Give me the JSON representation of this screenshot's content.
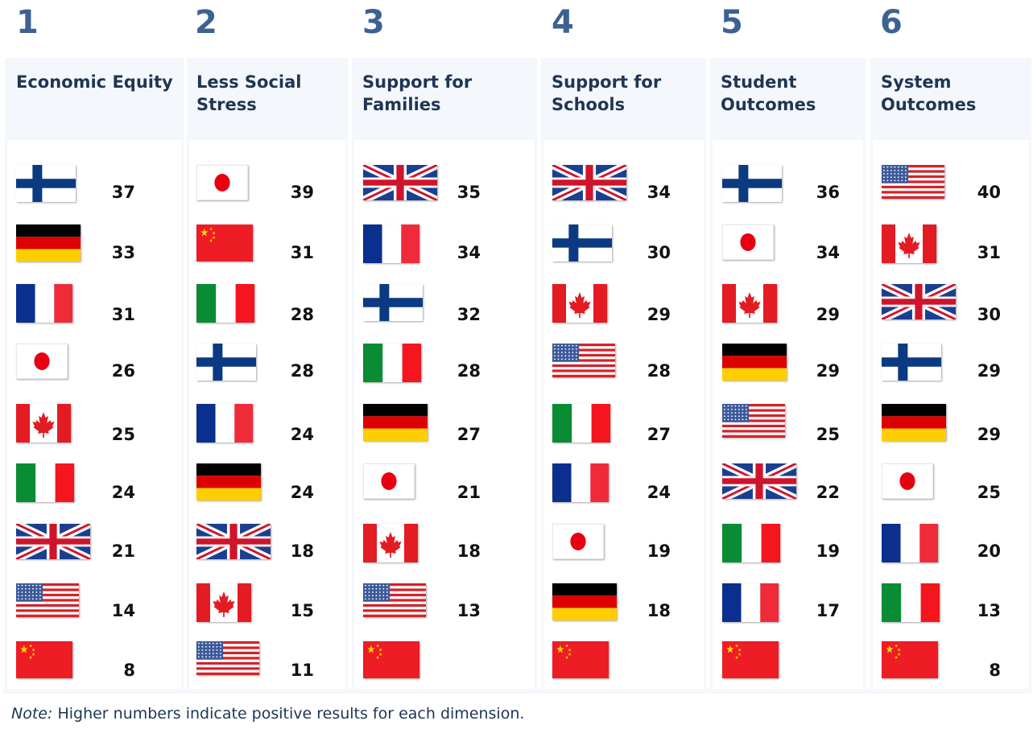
{
  "chart_data": {
    "type": "table",
    "note_label": "Note:",
    "note_text": "Higher numbers indicate positive results for each dimension.",
    "columns": [
      {
        "number": "1",
        "title_line1": "Economic Equity",
        "title_line2": "",
        "rows": [
          {
            "country": "Finland",
            "flag": "finland-flag",
            "score": "37"
          },
          {
            "country": "Germany",
            "flag": "germany-flag",
            "score": "33"
          },
          {
            "country": "France",
            "flag": "france-flag",
            "score": "31"
          },
          {
            "country": "Japan",
            "flag": "japan-flag",
            "score": "26"
          },
          {
            "country": "Canada",
            "flag": "canada-flag",
            "score": "25"
          },
          {
            "country": "Italy",
            "flag": "italy-flag",
            "score": "24"
          },
          {
            "country": "United Kingdom",
            "flag": "uk-flag",
            "score": "21"
          },
          {
            "country": "United States",
            "flag": "usa-flag",
            "score": "14"
          },
          {
            "country": "China",
            "flag": "china-flag",
            "score": "8"
          }
        ]
      },
      {
        "number": "2",
        "title_line1": "Less Social",
        "title_line2": "Stress",
        "rows": [
          {
            "country": "Japan",
            "flag": "japan-flag",
            "score": "39"
          },
          {
            "country": "China",
            "flag": "china-flag",
            "score": "31"
          },
          {
            "country": "Italy",
            "flag": "italy-flag",
            "score": "28"
          },
          {
            "country": "Finland",
            "flag": "finland-flag",
            "score": "28"
          },
          {
            "country": "France",
            "flag": "france-flag",
            "score": "24"
          },
          {
            "country": "Germany",
            "flag": "germany-flag",
            "score": "24"
          },
          {
            "country": "United Kingdom",
            "flag": "uk-flag",
            "score": "18"
          },
          {
            "country": "Canada",
            "flag": "canada-flag",
            "score": "15"
          },
          {
            "country": "United States",
            "flag": "usa-flag",
            "score": "11"
          }
        ]
      },
      {
        "number": "3",
        "title_line1": "Support for",
        "title_line2": "Families",
        "rows": [
          {
            "country": "United Kingdom",
            "flag": "uk-flag",
            "score": "35"
          },
          {
            "country": "France",
            "flag": "france-flag",
            "score": "34"
          },
          {
            "country": "Finland",
            "flag": "finland-flag",
            "score": "32"
          },
          {
            "country": "Italy",
            "flag": "italy-flag",
            "score": "28"
          },
          {
            "country": "Germany",
            "flag": "germany-flag",
            "score": "27"
          },
          {
            "country": "Japan",
            "flag": "japan-flag",
            "score": "21"
          },
          {
            "country": "Canada",
            "flag": "canada-flag",
            "score": "18"
          },
          {
            "country": "United States",
            "flag": "usa-flag",
            "score": "13"
          },
          {
            "country": "China",
            "flag": "china-flag",
            "score": ""
          }
        ]
      },
      {
        "number": "4",
        "title_line1": "Support for",
        "title_line2": "Schools",
        "rows": [
          {
            "country": "United Kingdom",
            "flag": "uk-flag",
            "score": "34"
          },
          {
            "country": "Finland",
            "flag": "finland-flag",
            "score": "30"
          },
          {
            "country": "Canada",
            "flag": "canada-flag",
            "score": "29"
          },
          {
            "country": "United States",
            "flag": "usa-flag",
            "score": "28"
          },
          {
            "country": "Italy",
            "flag": "italy-flag",
            "score": "27"
          },
          {
            "country": "France",
            "flag": "france-flag",
            "score": "24"
          },
          {
            "country": "Japan",
            "flag": "japan-flag",
            "score": "19"
          },
          {
            "country": "Germany",
            "flag": "germany-flag",
            "score": "18"
          },
          {
            "country": "China",
            "flag": "china-flag",
            "score": ""
          }
        ]
      },
      {
        "number": "5",
        "title_line1": "Student",
        "title_line2": "Outcomes",
        "rows": [
          {
            "country": "Finland",
            "flag": "finland-flag",
            "score": "36"
          },
          {
            "country": "Japan",
            "flag": "japan-flag",
            "score": "34"
          },
          {
            "country": "Canada",
            "flag": "canada-flag",
            "score": "29"
          },
          {
            "country": "Germany",
            "flag": "germany-flag",
            "score": "29"
          },
          {
            "country": "United States",
            "flag": "usa-flag",
            "score": "25"
          },
          {
            "country": "United Kingdom",
            "flag": "uk-flag",
            "score": "22"
          },
          {
            "country": "Italy",
            "flag": "italy-flag",
            "score": "19"
          },
          {
            "country": "France",
            "flag": "france-flag",
            "score": "17"
          },
          {
            "country": "China",
            "flag": "china-flag",
            "score": ""
          }
        ]
      },
      {
        "number": "6",
        "title_line1": "System",
        "title_line2": "Outcomes",
        "rows": [
          {
            "country": "United States",
            "flag": "usa-flag",
            "score": "40"
          },
          {
            "country": "Canada",
            "flag": "canada-flag",
            "score": "31"
          },
          {
            "country": "United Kingdom",
            "flag": "uk-flag",
            "score": "30"
          },
          {
            "country": "Finland",
            "flag": "finland-flag",
            "score": "29"
          },
          {
            "country": "Germany",
            "flag": "germany-flag",
            "score": "29"
          },
          {
            "country": "Japan",
            "flag": "japan-flag",
            "score": "25"
          },
          {
            "country": "France",
            "flag": "france-flag",
            "score": "20"
          },
          {
            "country": "Italy",
            "flag": "italy-flag",
            "score": "13"
          },
          {
            "country": "China",
            "flag": "china-flag",
            "score": "8"
          }
        ]
      }
    ]
  }
}
